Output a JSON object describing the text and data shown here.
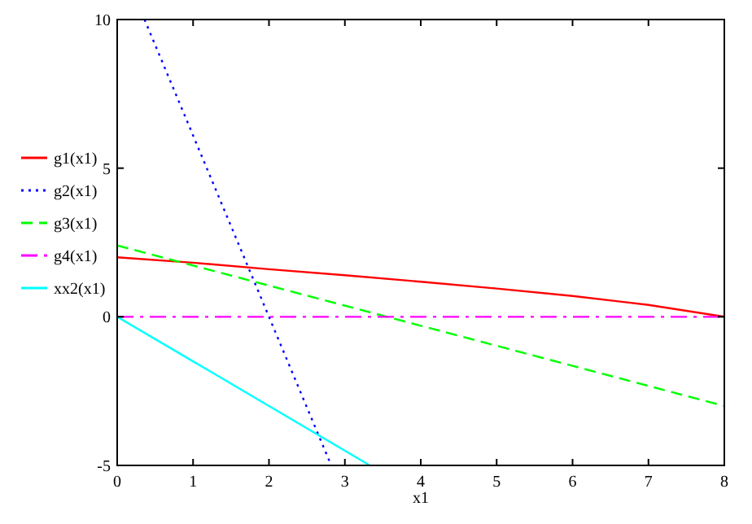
{
  "chart_data": {
    "type": "line",
    "xlabel": "x1",
    "xlim": [
      0,
      8
    ],
    "ylim": [
      -5,
      10
    ],
    "xticks": [
      0,
      1,
      2,
      3,
      4,
      5,
      6,
      7,
      8
    ],
    "yticks": [
      -5,
      0,
      5,
      10
    ],
    "grid": false,
    "legend": "left",
    "series": [
      {
        "name": "g1(x1)",
        "color": "#ff0000",
        "line_style": "solid",
        "x": [
          0,
          1,
          2,
          3,
          4,
          5,
          6,
          7,
          8
        ],
        "values": [
          2,
          1.82,
          1.6,
          1.4,
          1.18,
          0.95,
          0.7,
          0.4,
          0
        ]
      },
      {
        "name": "g2(x1)",
        "color": "#0000ff",
        "line_style": "dotted",
        "x": [
          0.36,
          1,
          2,
          2.82
        ],
        "values": [
          10,
          6.1,
          0,
          -5
        ]
      },
      {
        "name": "g3(x1)",
        "color": "#00ff00",
        "line_style": "dashed",
        "x": [
          0,
          2,
          4,
          6,
          8
        ],
        "values": [
          2.4,
          1.05,
          -0.3,
          -1.65,
          -3
        ]
      },
      {
        "name": "g4(x1)",
        "color": "#ff00ff",
        "line_style": "dashdot",
        "x": [
          0,
          8
        ],
        "values": [
          0,
          0
        ]
      },
      {
        "name": "xx2(x1)",
        "color": "#00ffff",
        "line_style": "solid",
        "x": [
          0,
          1,
          2,
          3.33
        ],
        "values": [
          0,
          -1.5,
          -3,
          -5
        ]
      }
    ]
  }
}
